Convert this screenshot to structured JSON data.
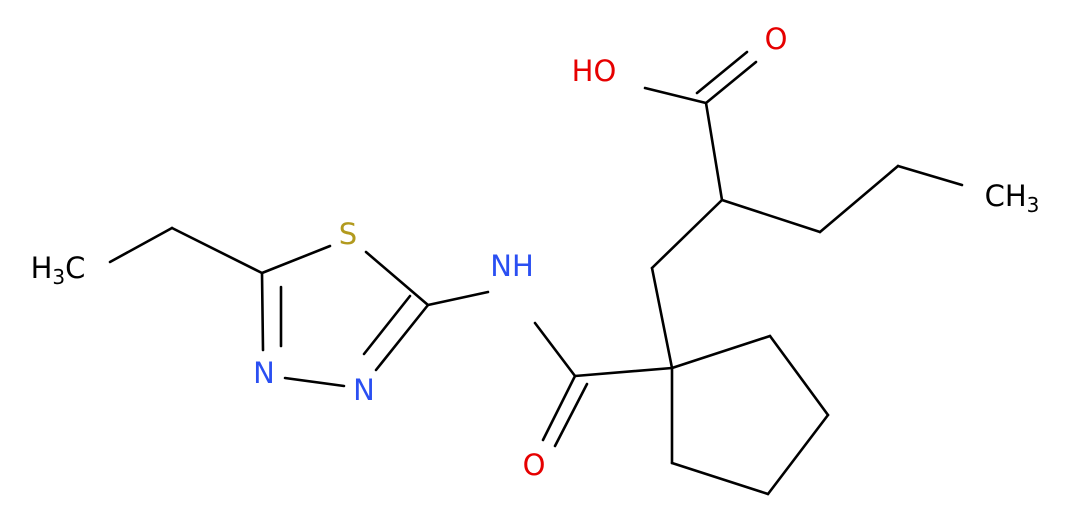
{
  "nodes": [
    {
      "parts": [
        "HO"
      ]
    },
    {
      "parts": [
        "O"
      ]
    },
    {
      "parts": [
        "CH",
        "3"
      ]
    },
    {
      "parts": [
        "H",
        "3",
        "C"
      ]
    },
    {
      "parts": [
        "S"
      ]
    },
    {
      "parts": [
        "NH"
      ]
    },
    {
      "parts": [
        "N"
      ]
    },
    {
      "parts": [
        "N"
      ]
    },
    {
      "parts": [
        "O"
      ]
    }
  ]
}
